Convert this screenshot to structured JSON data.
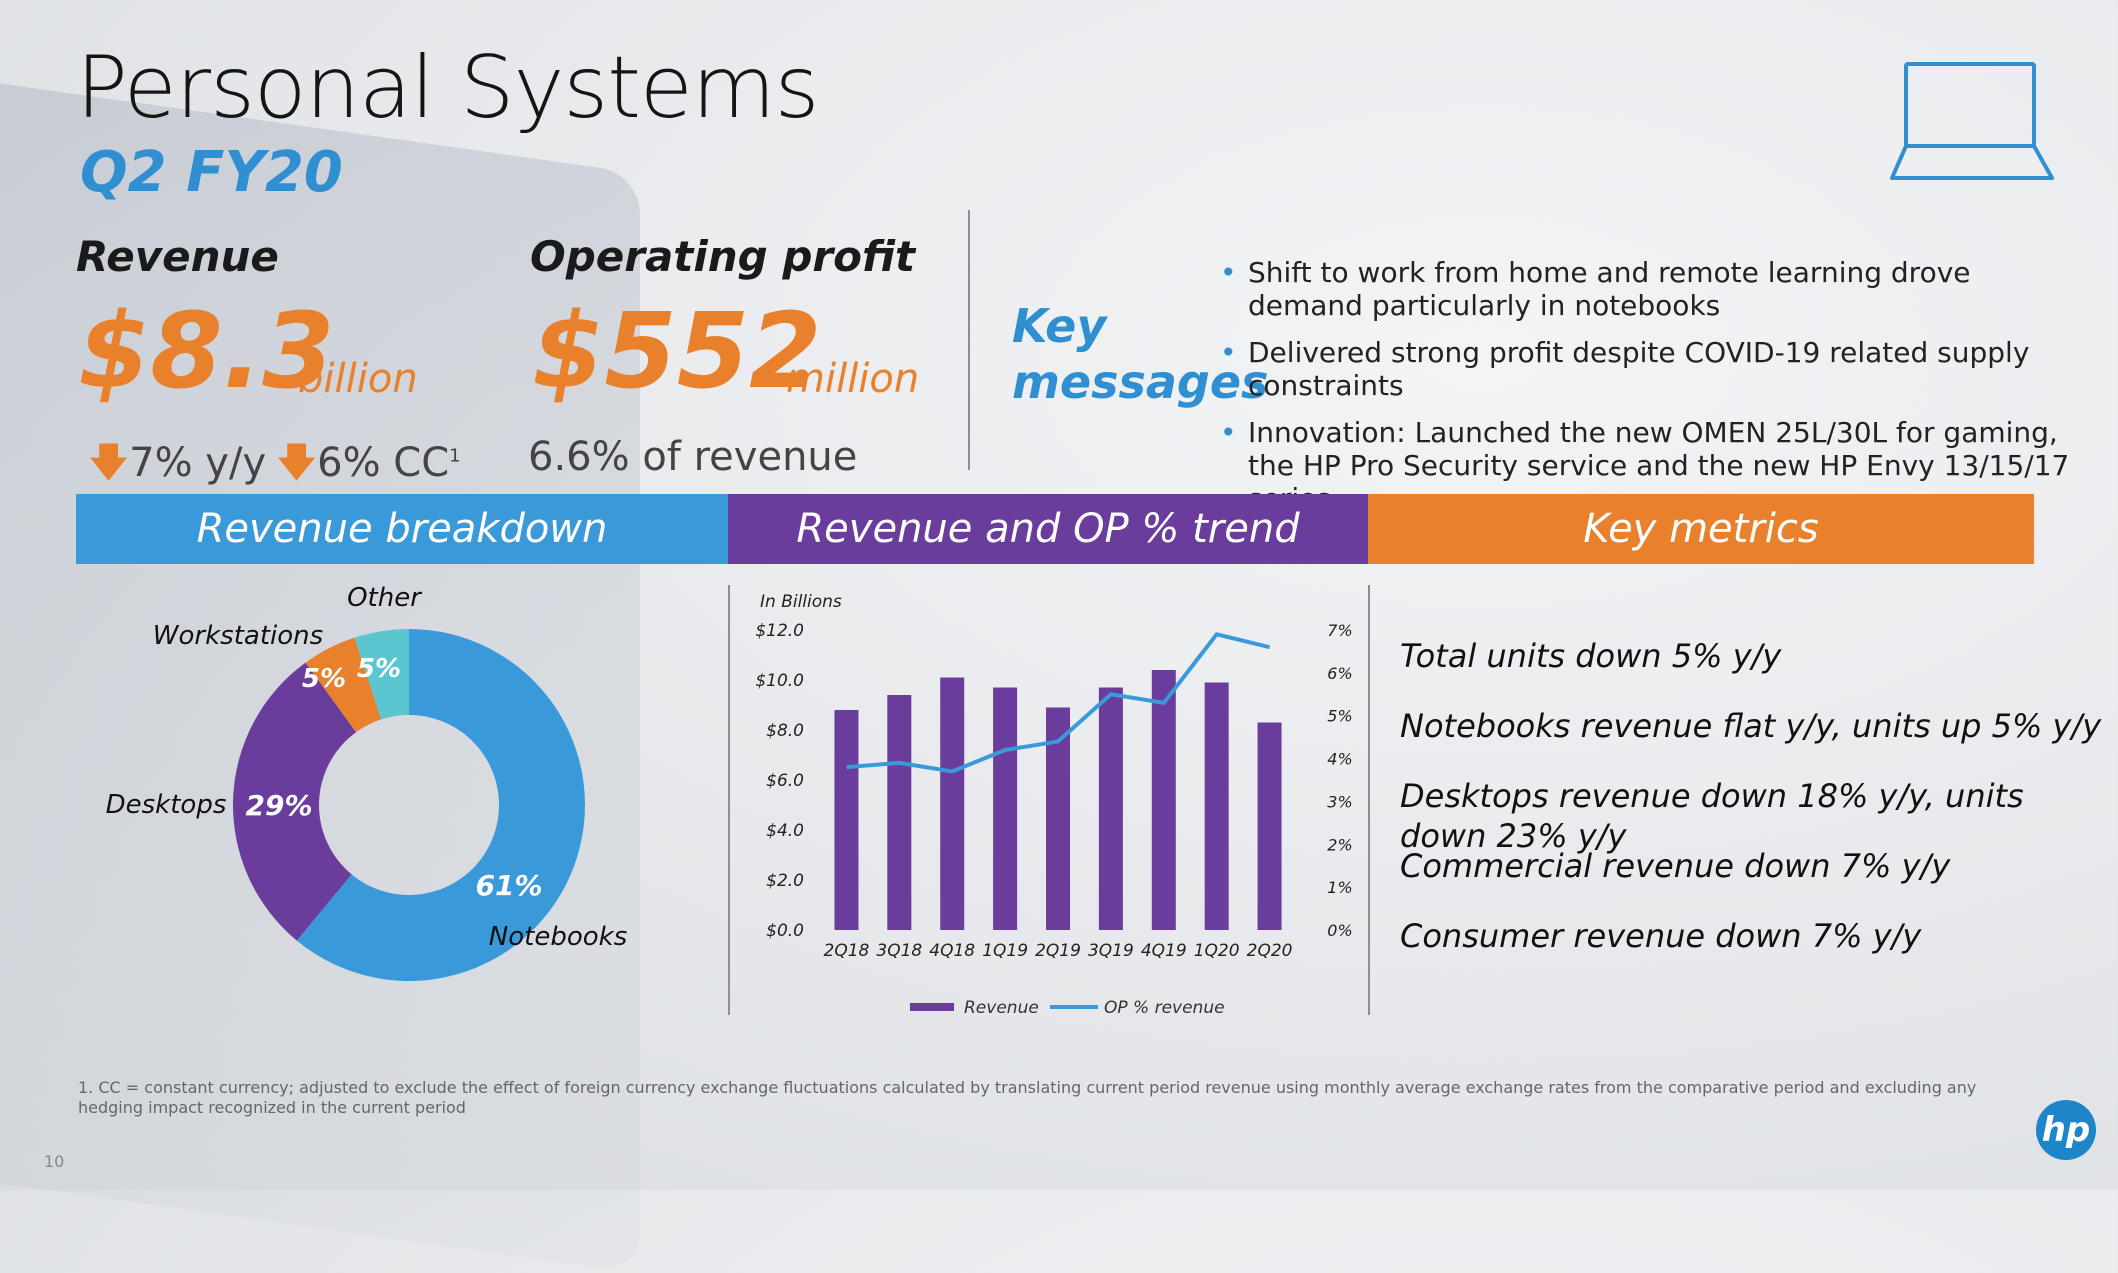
{
  "header": {
    "title": "Personal Systems",
    "subtitle": "Q2 FY20"
  },
  "revenue": {
    "label": "Revenue",
    "value": "$8.3",
    "unit": "billion",
    "yoy": "7% y/y",
    "cc": "6% CC",
    "cc_sup": "1"
  },
  "op_profit": {
    "label": "Operating profit",
    "value": "$552",
    "unit": "million",
    "pct": "6.6% of revenue"
  },
  "key_messages": {
    "label_line1": "Key",
    "label_line2": "messages",
    "items": [
      "Shift to work from home and remote learning drove demand particularly in notebooks",
      "Delivered strong profit despite COVID-19 related supply constraints",
      "Innovation: Launched the new OMEN 25L/30L for gaming, the HP Pro Security service and the new HP Envy 13/15/17 series"
    ]
  },
  "bands": {
    "breakdown": "Revenue breakdown",
    "trend": "Revenue and OP % trend",
    "metrics": "Key metrics"
  },
  "key_metrics": [
    "Total units down 5% y/y",
    "Notebooks revenue flat y/y, units up 5% y/y",
    "Desktops revenue down 18% y/y, units down 23% y/y",
    "Commercial revenue down 7% y/y",
    "Consumer revenue down 7% y/y"
  ],
  "footnote": "1. CC = constant currency; adjusted to exclude the effect of foreign currency exchange fluctuations calculated by translating current period revenue using monthly average exchange rates from the comparative period and excluding any hedging impact recognized in the current period",
  "page_number": "10",
  "logo_text": "hp",
  "colors": {
    "blue": "#3a9ad9",
    "purple": "#6a3c9c",
    "orange": "#e8802c",
    "teal": "#5cc6d0"
  },
  "chart_data": [
    {
      "type": "pie",
      "donut": true,
      "categories": [
        "Notebooks",
        "Desktops",
        "Workstations",
        "Other"
      ],
      "values": [
        61,
        29,
        5,
        5
      ],
      "labels": [
        "61%",
        "29%",
        "5%",
        "5%"
      ],
      "colors": [
        "#3a9ad9",
        "#6a3c9c",
        "#e8802c",
        "#5cc6d0"
      ]
    },
    {
      "type": "bar",
      "ylabel": "In Billions",
      "categories": [
        "2Q18",
        "3Q18",
        "4Q18",
        "1Q19",
        "2Q19",
        "3Q19",
        "4Q19",
        "1Q20",
        "2Q20"
      ],
      "ylim": [
        0,
        12
      ],
      "y_ticks": [
        "$0.0",
        "$2.0",
        "$4.0",
        "$6.0",
        "$8.0",
        "$10.0",
        "$12.0"
      ],
      "y2lim": [
        0,
        7
      ],
      "y2_ticks": [
        "0%",
        "1%",
        "2%",
        "3%",
        "4%",
        "5%",
        "6%",
        "7%"
      ],
      "series": [
        {
          "name": "Revenue",
          "kind": "bar",
          "axis": "left",
          "color": "#6a3c9c",
          "values": [
            8.8,
            9.4,
            10.1,
            9.7,
            8.9,
            9.7,
            10.4,
            9.9,
            8.3
          ]
        },
        {
          "name": "OP % revenue",
          "kind": "line",
          "axis": "right",
          "color": "#3a9ad9",
          "values": [
            3.8,
            3.9,
            3.7,
            4.2,
            4.4,
            5.5,
            5.3,
            6.9,
            6.6
          ]
        }
      ],
      "legend": "bottom"
    }
  ]
}
